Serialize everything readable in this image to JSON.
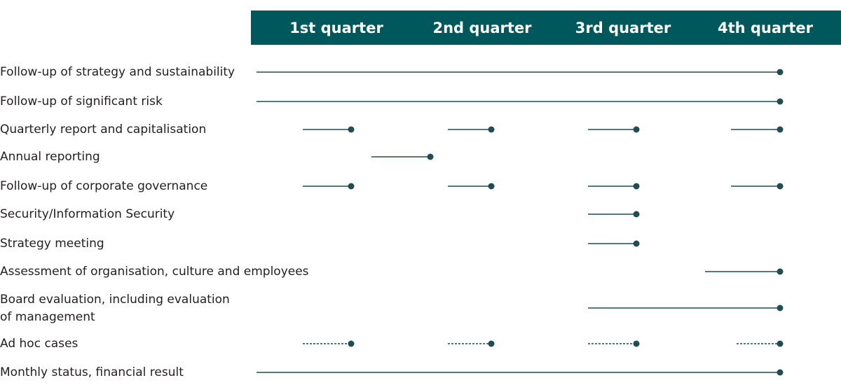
{
  "header": {
    "quarters": [
      "1st quarter",
      "2nd quarter",
      "3rd quarter",
      "4th quarter"
    ]
  },
  "rows": [
    {
      "lines": [
        "Follow-up of strategy and sustainability"
      ]
    },
    {
      "lines": [
        "Follow-up of significant risk"
      ]
    },
    {
      "lines": [
        "Quarterly report and capitalisation"
      ]
    },
    {
      "lines": [
        "Annual reporting"
      ]
    },
    {
      "lines": [
        "Follow-up of corporate governance"
      ]
    },
    {
      "lines": [
        "Security/Information Security"
      ]
    },
    {
      "lines": [
        "Strategy meeting"
      ]
    },
    {
      "lines": [
        "Assessment of organisation, culture and employees"
      ]
    },
    {
      "lines": [
        "Board evaluation, including evaluation",
        "of management"
      ]
    },
    {
      "lines": [
        "Ad hoc cases"
      ]
    },
    {
      "lines": [
        "Monthly status, financial result"
      ]
    }
  ]
}
